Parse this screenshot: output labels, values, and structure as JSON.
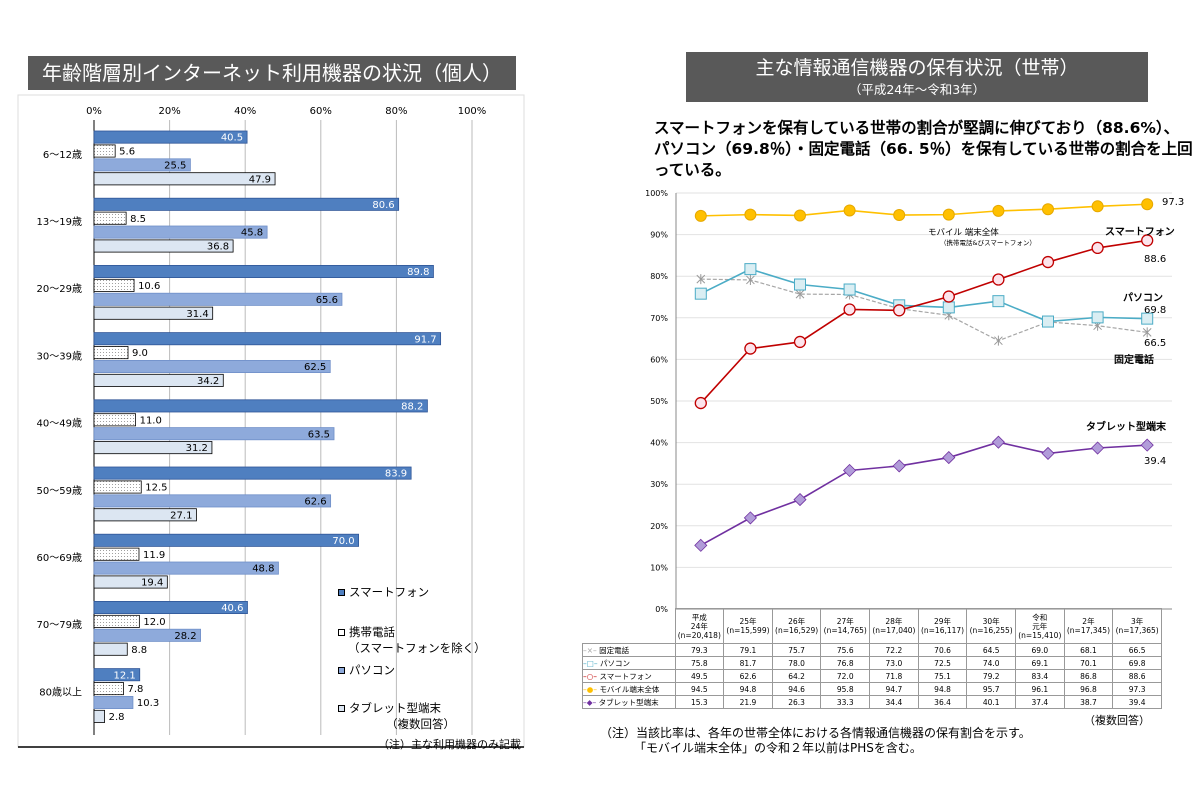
{
  "left": {
    "title": "年齢階層別インターネット利用機器の状況（個人）",
    "note": "（注）主な利用機器のみ記載",
    "legend": [
      {
        "name": "スマートフォン",
        "sub": ""
      },
      {
        "name": "携帯電話",
        "sub": "（スマートフォンを除く）"
      },
      {
        "name": "パソコン",
        "sub": ""
      },
      {
        "name": "タブレット型端末",
        "sub": "（複数回答）"
      }
    ],
    "chart_data": {
      "type": "bar",
      "orientation": "horizontal",
      "categories": [
        "6～12歳",
        "13～19歳",
        "20～29歳",
        "30～39歳",
        "40～49歳",
        "50～59歳",
        "60～69歳",
        "70～79歳",
        "80歳以上"
      ],
      "x_ticks": [
        "0%",
        "20%",
        "40%",
        "60%",
        "80%",
        "100%"
      ],
      "xlim": [
        0,
        100
      ],
      "series": [
        {
          "name": "スマートフォン",
          "color": "#4472b0",
          "values": [
            40.5,
            80.6,
            89.8,
            91.7,
            88.2,
            83.9,
            70.0,
            40.6,
            12.1
          ]
        },
        {
          "name": "携帯電話",
          "color": "#ffffff",
          "values": [
            5.6,
            8.5,
            10.6,
            9.0,
            11.0,
            12.5,
            11.9,
            12.0,
            7.8
          ]
        },
        {
          "name": "パソコン",
          "color": "#8eaadb",
          "values": [
            25.5,
            45.8,
            65.6,
            62.5,
            63.5,
            62.6,
            48.8,
            28.2,
            10.3
          ]
        },
        {
          "name": "タブレット型端末",
          "color": "#dce6f2",
          "values": [
            47.9,
            36.8,
            31.4,
            34.2,
            31.2,
            27.1,
            19.4,
            8.8,
            2.8
          ]
        }
      ],
      "value_labels": [
        [
          "40.5",
          "5.6",
          "25.5",
          "47.9"
        ],
        [
          "80.6",
          "8.5",
          "45.8",
          "36.8"
        ],
        [
          "89.8",
          "10.6",
          "65.6",
          "31.4"
        ],
        [
          "91.7",
          "9.0",
          "62.5",
          "34.2"
        ],
        [
          "88.2",
          "11.0",
          "63.5",
          "31.2"
        ],
        [
          "83.9",
          "12.5",
          "62.6",
          "27.1"
        ],
        [
          "70.0",
          "11.9",
          "48.8",
          "19.4"
        ],
        [
          "40.6",
          "12.0",
          "28.2",
          "8.8"
        ],
        [
          "12.1",
          "7.8",
          "10.3",
          "2.8"
        ]
      ]
    }
  },
  "right": {
    "title": "主な情報通信機器の保有状況（世帯）",
    "subtitle": "（平成24年～令和3年）",
    "headline": "スマートフォンを保有している世帯の割合が堅調に伸びており（88.6%）、パソコン（69.8％）・固定電話（66. 5％）を保有している世帯の割合を上回っている。",
    "multi_answer": "（複数回答）",
    "note1": "（注）当該比率は、各年の世帯全体における各情報通信機器の保有割合を示す。",
    "note2": "「モバイル端末全体」の令和２年以前はPHSを含む。",
    "annotations": {
      "mobile_label": "モバイル 端末全体",
      "mobile_sub": "（携帯電話&びスマートフォン）",
      "smartphone": "スマートフォン",
      "pc": "パソコン",
      "landline": "固定電話",
      "tablet": "タブレット型端末",
      "mobile_end": "97.3",
      "smartphone_end": "88.6",
      "pc_end": "69.8",
      "landline_end": "66.5",
      "tablet_end": "39.4"
    },
    "chart_data": {
      "type": "line",
      "y_ticks": [
        "0%",
        "10%",
        "20%",
        "30%",
        "40%",
        "50%",
        "60%",
        "70%",
        "80%",
        "90%",
        "100%"
      ],
      "ylim": [
        0,
        100
      ],
      "x_labels": [
        {
          "year": "平成\n24年",
          "n": "(n=20,418)"
        },
        {
          "year": "25年",
          "n": "(n=15,599)"
        },
        {
          "year": "26年",
          "n": "(n=16,529)"
        },
        {
          "year": "27年",
          "n": "(n=14,765)"
        },
        {
          "year": "28年",
          "n": "(n=17,040)"
        },
        {
          "year": "29年",
          "n": "(n=16,117)"
        },
        {
          "year": "30年",
          "n": "(n=16,255)"
        },
        {
          "year": "令和\n元年",
          "n": "(n=15,410)"
        },
        {
          "year": "2年",
          "n": "(n=17,345)"
        },
        {
          "year": "3年",
          "n": "(n=17,365)"
        }
      ],
      "series": [
        {
          "name": "固定電話",
          "color": "#a6a6a6",
          "values": [
            79.3,
            79.1,
            75.7,
            75.6,
            72.2,
            70.6,
            64.5,
            69.0,
            68.1,
            66.5
          ]
        },
        {
          "name": "パソコン",
          "color": "#4bacc6",
          "values": [
            75.8,
            81.7,
            78.0,
            76.8,
            73.0,
            72.5,
            74.0,
            69.1,
            70.1,
            69.8
          ]
        },
        {
          "name": "スマートフォン",
          "color": "#c00000",
          "values": [
            49.5,
            62.6,
            64.2,
            72.0,
            71.8,
            75.1,
            79.2,
            83.4,
            86.8,
            88.6
          ]
        },
        {
          "name": "モバイル端末全体",
          "color": "#ffc000",
          "values": [
            94.5,
            94.8,
            94.6,
            95.8,
            94.7,
            94.8,
            95.7,
            96.1,
            96.8,
            97.3
          ]
        },
        {
          "name": "タブレット型端末",
          "color": "#7030a0",
          "values": [
            15.3,
            21.9,
            26.3,
            33.3,
            34.4,
            36.4,
            40.1,
            37.4,
            38.7,
            39.4
          ]
        }
      ],
      "table_values": [
        [
          "79.3",
          "79.1",
          "75.7",
          "75.6",
          "72.2",
          "70.6",
          "64.5",
          "69.0",
          "68.1",
          "66.5"
        ],
        [
          "75.8",
          "81.7",
          "78.0",
          "76.8",
          "73.0",
          "72.5",
          "74.0",
          "69.1",
          "70.1",
          "69.8"
        ],
        [
          "49.5",
          "62.6",
          "64.2",
          "72.0",
          "71.8",
          "75.1",
          "79.2",
          "83.4",
          "86.8",
          "88.6"
        ],
        [
          "94.5",
          "94.8",
          "94.6",
          "95.8",
          "94.7",
          "94.8",
          "95.7",
          "96.1",
          "96.8",
          "97.3"
        ],
        [
          "15.3",
          "21.9",
          "26.3",
          "33.3",
          "34.4",
          "36.4",
          "40.1",
          "37.4",
          "38.7",
          "39.4"
        ]
      ]
    }
  }
}
